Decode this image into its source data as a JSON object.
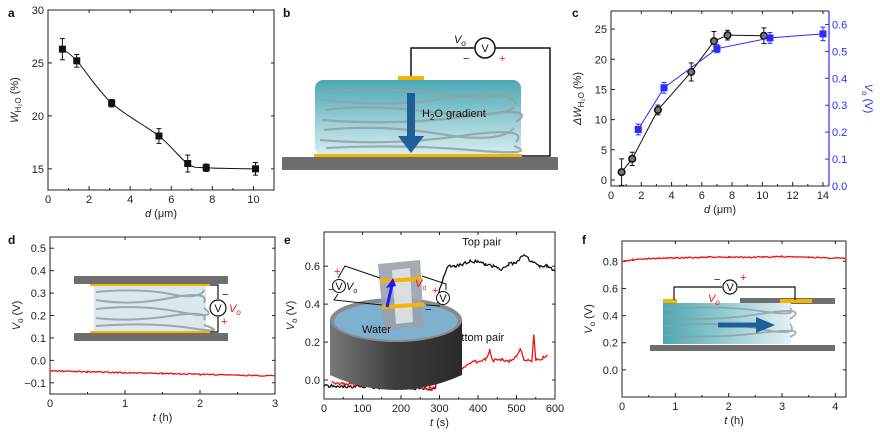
{
  "figure": {
    "panel_labels": [
      "a",
      "b",
      "c",
      "d",
      "e",
      "f"
    ]
  },
  "colors": {
    "black_series": "#111111",
    "blue_series": "#2b2bff",
    "red_trace": "#ee1111",
    "electrode_gold": "#f4b400",
    "substrate_gray": "#6e6e6e",
    "fiber_teal": "#5fb7bf"
  },
  "diagram_b": {
    "voltmeter_label": "V",
    "vo_label": "V",
    "vo_sub": "o",
    "minus": "−",
    "plus": "+",
    "gradient_label_pre": "H",
    "gradient_label_sub": "2",
    "gradient_label_post": "O gradient"
  },
  "inset_d": {
    "voltmeter_label": "V",
    "vo_label": "V",
    "vo_sub": "o",
    "minus": "−",
    "plus": "+"
  },
  "inset_e": {
    "voltmeter_label": "V",
    "vo_label": "V",
    "vo_sub": "o",
    "water_label": "Water",
    "minus": "−",
    "plus": "+"
  },
  "inset_f": {
    "voltmeter_label": "V",
    "vo_label": "V",
    "vo_sub": "o",
    "minus": "−",
    "plus": "+"
  },
  "chart_data": [
    {
      "panel": "a",
      "type": "line",
      "title": "",
      "xlabel_var": "d",
      "xlabel_unit": " (μm)",
      "ylabel_var": "W",
      "ylabel_sub": "H₂O",
      "ylabel_unit": " (%)",
      "xlim": [
        0,
        11
      ],
      "ylim": [
        13,
        30
      ],
      "xticks": [
        0,
        2,
        4,
        6,
        8,
        10
      ],
      "yticks": [
        15,
        20,
        25,
        30
      ],
      "series": [
        {
          "name": "W_H2O",
          "marker": "square",
          "x": [
            0.7,
            1.4,
            3.1,
            5.4,
            6.8,
            7.7,
            10.1
          ],
          "y": [
            26.3,
            25.2,
            21.2,
            18.1,
            15.5,
            15.1,
            15.0
          ],
          "err": [
            1.0,
            0.6,
            0.35,
            0.7,
            0.8,
            0.35,
            0.6
          ]
        }
      ],
      "grid": false
    },
    {
      "panel": "c",
      "type": "line",
      "title": "",
      "xlabel_var": "d",
      "xlabel_unit": " (μm)",
      "ylabel_var": "ΔW",
      "ylabel_sub": "H₂O",
      "ylabel_unit": " (%)",
      "y2label_var": "V",
      "y2label_sub": "o",
      "y2label_unit": " (V)",
      "xlim": [
        0,
        14.4
      ],
      "ylim": [
        -1,
        28
      ],
      "y2lim": [
        0,
        0.65
      ],
      "xticks": [
        0,
        2,
        4,
        6,
        8,
        10,
        12,
        14
      ],
      "yticks": [
        0,
        5,
        10,
        15,
        20,
        25
      ],
      "y2ticks": [
        0.0,
        0.1,
        0.2,
        0.3,
        0.4,
        0.5,
        0.6
      ],
      "y2ticklabels": [
        "0.0",
        "0.1",
        "0.2",
        "0.3",
        "0.4",
        "0.5",
        "0.6"
      ],
      "series": [
        {
          "name": "ΔW_H2O",
          "axis": "left",
          "marker": "circle",
          "x": [
            0.7,
            1.4,
            3.1,
            5.3,
            6.8,
            7.7,
            10.1
          ],
          "y": [
            1.3,
            3.5,
            11.6,
            17.9,
            23.0,
            24.0,
            23.9
          ],
          "err": [
            2.2,
            1.1,
            0.8,
            1.5,
            1.6,
            0.8,
            1.3
          ]
        },
        {
          "name": "Vo",
          "axis": "right",
          "marker": "square",
          "x": [
            1.8,
            3.5,
            7.0,
            10.5,
            14.0
          ],
          "y": [
            0.21,
            0.365,
            0.51,
            0.55,
            0.565
          ],
          "err": [
            0.02,
            0.02,
            0.015,
            0.02,
            0.025
          ]
        }
      ],
      "grid": false
    },
    {
      "panel": "d",
      "type": "line",
      "xlabel_var": "t",
      "xlabel_unit": " (h)",
      "ylabel_var": "V",
      "ylabel_sub": "o",
      "ylabel_unit": " (V)",
      "xlim": [
        0,
        3
      ],
      "ylim": [
        -0.15,
        0.55
      ],
      "xticks": [
        0,
        1,
        2,
        3
      ],
      "yticks": [
        -0.1,
        0.0,
        0.1,
        0.2,
        0.3,
        0.4,
        0.5
      ],
      "yticklabels": [
        "−0.1",
        "0.0",
        "0.1",
        "0.2",
        "0.3",
        "0.4",
        "0.5"
      ],
      "series": [
        {
          "name": "Vo",
          "color": "red",
          "x": [
            0,
            0.5,
            1,
            1.5,
            2,
            2.5,
            3
          ],
          "y": [
            -0.047,
            -0.051,
            -0.055,
            -0.059,
            -0.062,
            -0.066,
            -0.069
          ]
        }
      ],
      "grid": false
    },
    {
      "panel": "e",
      "type": "line",
      "xlabel_var": "t",
      "xlabel_unit": " (s)",
      "ylabel_var": "V",
      "ylabel_sub": "o",
      "ylabel_unit": " (V)",
      "xlim": [
        0,
        600
      ],
      "ylim": [
        -0.1,
        0.78
      ],
      "xticks": [
        0,
        100,
        200,
        300,
        400,
        500,
        600
      ],
      "yticks": [
        0.0,
        0.2,
        0.4,
        0.6
      ],
      "yticklabels": [
        "0.0",
        "0.2",
        "0.4",
        "0.6"
      ],
      "annotations": [
        {
          "text": "Top pair",
          "x": 410,
          "y": 0.71
        },
        {
          "text": "Bottom pair",
          "x": 395,
          "y": 0.205
        }
      ],
      "series": [
        {
          "name": "Top pair",
          "color": "black",
          "x": [
            0,
            10,
            50,
            100,
            150,
            200,
            250,
            290,
            292,
            296,
            300,
            310,
            320,
            340,
            360,
            380,
            400,
            420,
            440,
            460,
            480,
            500,
            520,
            540,
            560,
            580,
            600
          ],
          "y": [
            -0.03,
            -0.03,
            -0.035,
            -0.035,
            -0.04,
            -0.04,
            -0.045,
            -0.045,
            0.3,
            0.42,
            0.48,
            0.54,
            0.6,
            0.6,
            0.61,
            0.63,
            0.62,
            0.61,
            0.6,
            0.58,
            0.61,
            0.62,
            0.66,
            0.62,
            0.6,
            0.6,
            0.57
          ]
        },
        {
          "name": "Bottom pair",
          "color": "red",
          "x": [
            20,
            50,
            100,
            150,
            200,
            250,
            290,
            292,
            300,
            320,
            340,
            360,
            380,
            400,
            420,
            430,
            440,
            460,
            480,
            500,
            510,
            520,
            540,
            545,
            550,
            570,
            580
          ],
          "y": [
            -0.01,
            -0.02,
            -0.025,
            -0.03,
            -0.035,
            -0.04,
            -0.045,
            0.0,
            0.06,
            0.07,
            0.07,
            0.06,
            0.09,
            0.1,
            0.11,
            0.16,
            0.1,
            0.11,
            0.1,
            0.12,
            0.16,
            0.11,
            0.1,
            0.24,
            0.1,
            0.12,
            0.13
          ]
        }
      ],
      "grid": false
    },
    {
      "panel": "f",
      "type": "line",
      "xlabel_var": "t",
      "xlabel_unit": " (h)",
      "ylabel_var": "V",
      "ylabel_sub": "o",
      "ylabel_unit": " (V)",
      "xlim": [
        0,
        4.2
      ],
      "ylim": [
        -0.2,
        0.95
      ],
      "xticks": [
        0,
        1,
        2,
        3,
        4
      ],
      "yticks": [
        0.0,
        0.2,
        0.4,
        0.6,
        0.8
      ],
      "yticklabels": [
        "0.0",
        "0.2",
        "0.4",
        "0.6",
        "0.8"
      ],
      "series": [
        {
          "name": "Vo",
          "color": "red",
          "x": [
            0,
            0.2,
            0.5,
            1,
            1.5,
            2,
            2.5,
            3,
            3.5,
            4,
            4.2
          ],
          "y": [
            0.8,
            0.81,
            0.82,
            0.825,
            0.83,
            0.83,
            0.83,
            0.835,
            0.83,
            0.825,
            0.82
          ]
        }
      ],
      "grid": false
    }
  ]
}
